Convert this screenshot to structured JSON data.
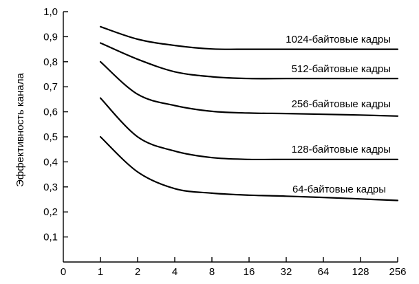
{
  "chart_data": {
    "type": "line",
    "title": "",
    "xlabel": "",
    "ylabel": "Эффективность канала",
    "x_tick_labels": [
      "0",
      "1",
      "2",
      "4",
      "8",
      "16",
      "32",
      "64",
      "128",
      "256"
    ],
    "y_tick_labels": [
      "0,1",
      "0,2",
      "0,3",
      "0,4",
      "0,5",
      "0,6",
      "0,7",
      "0,8",
      "0,9",
      "1,0"
    ],
    "y_ticks": [
      0.1,
      0.2,
      0.3,
      0.4,
      0.5,
      0.6,
      0.7,
      0.8,
      0.9,
      1.0
    ],
    "ylim": [
      0,
      1.0
    ],
    "x_scale": "log2",
    "xlim": [
      0,
      256
    ],
    "grid": false,
    "legend": "labels beside lines",
    "series": [
      {
        "name": "1024-байтовые кадры",
        "x": [
          1,
          2,
          4,
          8,
          16,
          32,
          64,
          128,
          256
        ],
        "values": [
          0.94,
          0.89,
          0.865,
          0.851,
          0.85,
          0.85,
          0.85,
          0.85,
          0.85
        ]
      },
      {
        "name": "512-байтовые кадры",
        "x": [
          1,
          2,
          4,
          8,
          16,
          32,
          64,
          128,
          256
        ],
        "values": [
          0.875,
          0.81,
          0.76,
          0.74,
          0.733,
          0.733,
          0.733,
          0.733,
          0.733
        ]
      },
      {
        "name": "256-байтовые кадры",
        "x": [
          1,
          2,
          4,
          8,
          16,
          32,
          64,
          128,
          256
        ],
        "values": [
          0.8,
          0.67,
          0.625,
          0.602,
          0.595,
          0.593,
          0.59,
          0.587,
          0.583
        ]
      },
      {
        "name": "128-байтовые кадры",
        "x": [
          1,
          2,
          4,
          8,
          16,
          32,
          64,
          128,
          256
        ],
        "values": [
          0.655,
          0.5,
          0.443,
          0.417,
          0.41,
          0.41,
          0.41,
          0.41,
          0.41
        ]
      },
      {
        "name": "64-байтовые кадры",
        "x": [
          1,
          2,
          4,
          8,
          16,
          32,
          64,
          128,
          256
        ],
        "values": [
          0.5,
          0.36,
          0.293,
          0.275,
          0.267,
          0.263,
          0.258,
          0.252,
          0.246
        ]
      }
    ]
  }
}
